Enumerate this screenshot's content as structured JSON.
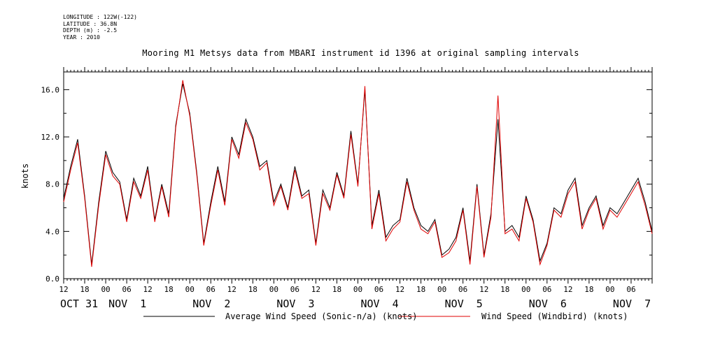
{
  "meta": {
    "longitude": "LONGITUDE : 122W(-122)",
    "latitude": "LATITUDE : 36.8N",
    "depth": "DEPTH (m) : -2.5",
    "year": "YEAR : 2010"
  },
  "chart_data": {
    "type": "line",
    "title": "Mooring M1 Metsys data from MBARI instrument id 1396 at original sampling intervals",
    "ylabel": "knots",
    "ylim": [
      0,
      17.5
    ],
    "yticks": [
      "0.0",
      "4.0",
      "8.0",
      "12.0",
      "16.0"
    ],
    "xlim_hours": [
      0,
      168
    ],
    "x_hour_labels": [
      "12",
      "18",
      "00",
      "06",
      "12",
      "18",
      "00",
      "06",
      "12",
      "18",
      "00",
      "06",
      "12",
      "18",
      "00",
      "06",
      "12",
      "18",
      "00",
      "06",
      "12",
      "18",
      "00",
      "06",
      "12",
      "18",
      "00",
      "06"
    ],
    "x_day_labels": [
      "OCT 31",
      "NOV  1",
      "NOV  2",
      "NOV  3",
      "NOV  4",
      "NOV  5",
      "NOV  6",
      "NOV  7"
    ],
    "colors": {
      "average": "#000000",
      "windbird": "#e00000"
    },
    "series": [
      {
        "name": "Average Wind Speed (Sonic-n/a) (knots)",
        "x": [
          0,
          2,
          4,
          6,
          8,
          10,
          12,
          14,
          16,
          18,
          20,
          22,
          24,
          26,
          28,
          30,
          32,
          34,
          36,
          38,
          40,
          42,
          44,
          46,
          48,
          50,
          52,
          54,
          56,
          58,
          60,
          62,
          64,
          66,
          68,
          70,
          72,
          74,
          76,
          78,
          80,
          82,
          84,
          86,
          88,
          90,
          92,
          94,
          96,
          98,
          100,
          102,
          104,
          106,
          108,
          110,
          112,
          114,
          116,
          118,
          120,
          122,
          124,
          126,
          128,
          130,
          132,
          134,
          136,
          138,
          140,
          142,
          144,
          146,
          148,
          150,
          152,
          154,
          156,
          158,
          160,
          162,
          164,
          166,
          168
        ],
        "values": [
          6.8,
          9.5,
          11.8,
          7,
          1.2,
          6.5,
          10.8,
          9,
          8.2,
          5,
          8.5,
          7,
          9.5,
          5,
          8,
          5.5,
          13,
          16.5,
          14,
          9,
          3,
          6.5,
          9.5,
          6.5,
          12,
          10.5,
          13.5,
          12,
          9.5,
          10,
          6.5,
          8,
          6,
          9.5,
          7,
          7.5,
          3,
          7.5,
          6,
          9,
          7,
          12.5,
          8,
          16,
          4.5,
          7.5,
          3.5,
          4.5,
          5,
          8.5,
          6,
          4.5,
          4,
          5,
          2,
          2.5,
          3.5,
          6,
          1.5,
          8,
          2,
          5.5,
          13.5,
          4,
          4.5,
          3.5,
          7,
          5,
          1.5,
          3,
          6,
          5.5,
          7.5,
          8.5,
          4.5,
          6,
          7,
          4.5,
          6,
          5.5,
          6.5,
          7.5,
          8.5,
          6.5,
          4
        ]
      },
      {
        "name": "Wind Speed (Windbird) (knots)",
        "x": [
          0,
          2,
          4,
          6,
          8,
          10,
          12,
          14,
          16,
          18,
          20,
          22,
          24,
          26,
          28,
          30,
          32,
          34,
          36,
          38,
          40,
          42,
          44,
          46,
          48,
          50,
          52,
          54,
          56,
          58,
          60,
          62,
          64,
          66,
          68,
          70,
          72,
          74,
          76,
          78,
          80,
          82,
          84,
          86,
          88,
          90,
          92,
          94,
          96,
          98,
          100,
          102,
          104,
          106,
          108,
          110,
          112,
          114,
          116,
          118,
          120,
          122,
          124,
          126,
          128,
          130,
          132,
          134,
          136,
          138,
          140,
          142,
          144,
          146,
          148,
          150,
          152,
          154,
          156,
          158,
          160,
          162,
          164,
          166,
          168
        ],
        "values": [
          6.5,
          9.2,
          11.5,
          6.8,
          1,
          6.2,
          10.5,
          8.7,
          8,
          4.8,
          8.2,
          6.8,
          9.2,
          4.8,
          7.8,
          5.2,
          12.8,
          16.8,
          13.8,
          8.8,
          2.8,
          6.2,
          9.2,
          6.2,
          11.8,
          10.2,
          13.2,
          11.8,
          9.2,
          9.8,
          6.2,
          7.8,
          5.8,
          9.2,
          6.8,
          7.2,
          2.8,
          7.2,
          5.8,
          8.8,
          6.8,
          12.2,
          7.8,
          16.3,
          4.2,
          7.2,
          3.2,
          4.2,
          4.8,
          8.2,
          5.8,
          4.2,
          3.8,
          4.8,
          1.8,
          2.2,
          3.2,
          5.8,
          1.2,
          7.8,
          1.8,
          5.2,
          15.5,
          3.8,
          4.2,
          3.2,
          6.8,
          4.8,
          1.2,
          2.8,
          5.8,
          5.2,
          7.2,
          8.2,
          4.2,
          5.8,
          6.8,
          4.2,
          5.8,
          5.2,
          6.2,
          7.2,
          8.2,
          6.2,
          3.8
        ]
      }
    ]
  }
}
